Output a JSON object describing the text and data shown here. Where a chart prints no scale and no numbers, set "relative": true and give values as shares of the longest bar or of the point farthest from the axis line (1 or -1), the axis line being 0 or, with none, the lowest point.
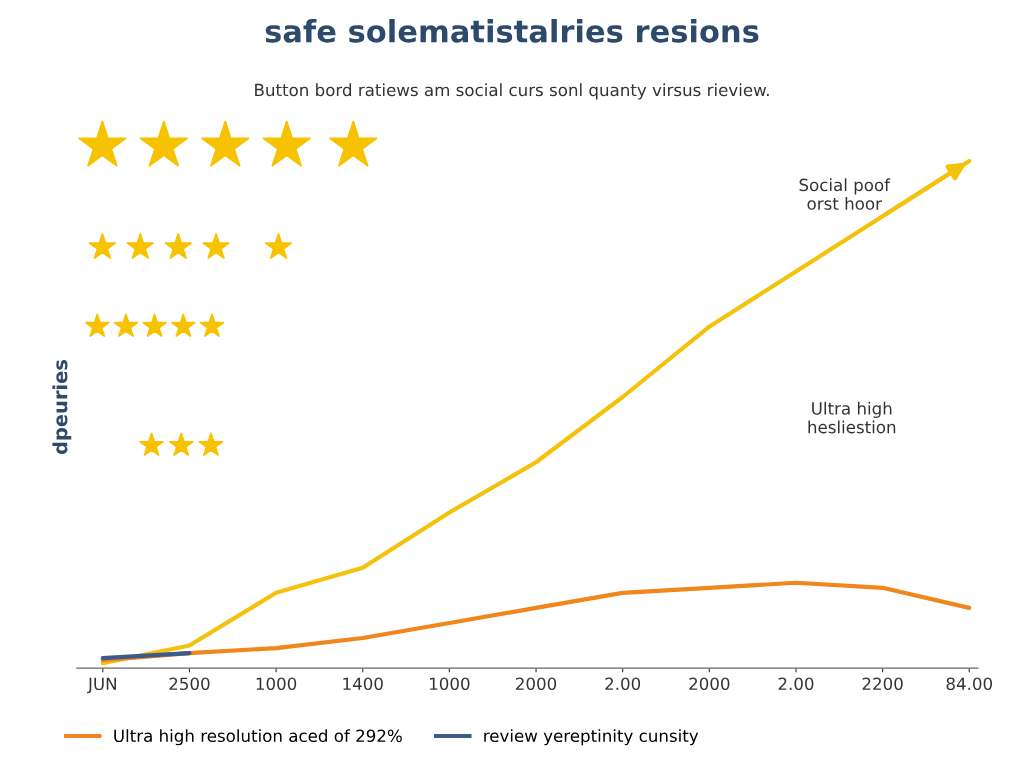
{
  "chart_data": {
    "type": "line",
    "title": "safe solematistalries resions",
    "subtitle": "Button bord ratiews am social curs sonl quanty virsus rieview.",
    "ylabel": "dpeuries",
    "annotations": [
      {
        "text": "Social poof\norst hoor",
        "x": "84.00",
        "y": 1
      },
      "Ultra high\nhesliestion"
    ],
    "categories": [
      "JUN",
      "2500",
      "1000",
      "1400",
      "1000",
      "2000",
      "2.00",
      "2000",
      "2.00",
      "2200",
      "84.00"
    ],
    "relative": true,
    "legend": "bottom left",
    "marker": "none",
    "line_style": "solid",
    "series": [
      {
        "color": "#f4c20d",
        "values": [
          0,
          0.035,
          0.14,
          0.19,
          0.3,
          0.4,
          0.53,
          0.67,
          0.78,
          0.89,
          1
        ]
      },
      {
        "name": "Ultra high resolution aced of 292%",
        "color": "#f0861c",
        "values": [
          0.006,
          0.02,
          0.03,
          0.05,
          0.08,
          0.11,
          0.14,
          0.15,
          0.16,
          0.15,
          0.11
        ]
      },
      {
        "name": "review yereptinity cunsity",
        "color": "#3d5a8a",
        "values": [
          0.01,
          0.02,
          null,
          null,
          null,
          null,
          null,
          null,
          null,
          null,
          null
        ]
      }
    ]
  }
}
